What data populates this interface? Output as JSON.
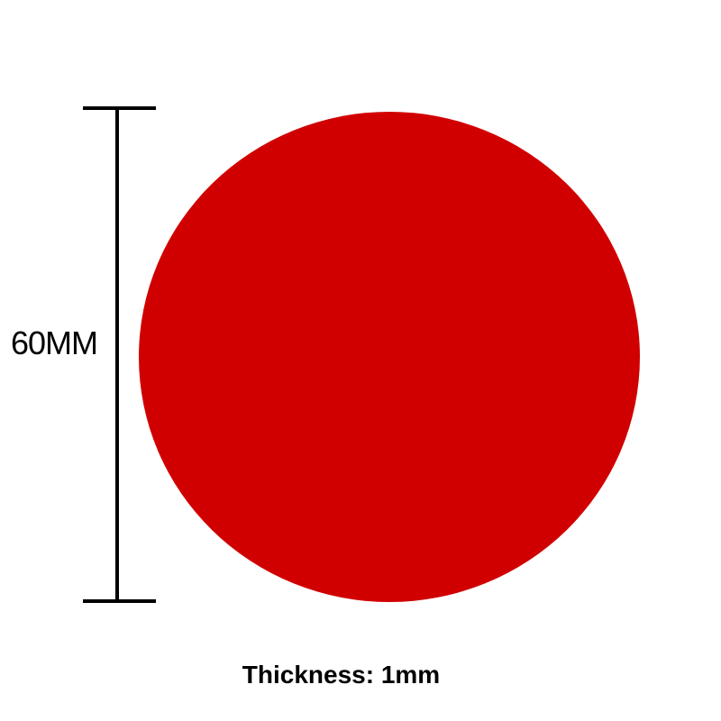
{
  "product": {
    "color": "#d10000",
    "shape": "circle"
  },
  "dimension": {
    "label": "60MM"
  },
  "caption": {
    "thickness": "Thickness: 1mm"
  }
}
